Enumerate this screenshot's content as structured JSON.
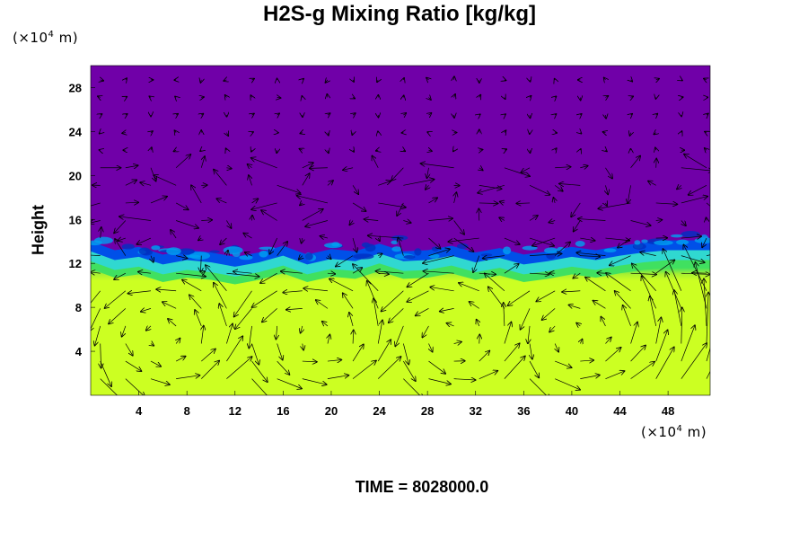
{
  "title": "H2S-g Mixing Ratio [kg/kg]",
  "unit_y": {
    "prefix": "(×10",
    "exp": "4",
    "suffix": " m)"
  },
  "unit_x": {
    "prefix": "(×10",
    "exp": "4",
    "suffix": " m)"
  },
  "time_label": "TIME = 8028000.0",
  "chart_data": {
    "type": "heatmap",
    "title": "H2S-g Mixing Ratio [kg/kg]",
    "ylabel": "Height",
    "xlabel": "",
    "x_unit": "(×10^4 m)",
    "y_unit": "(×10^4 m)",
    "xlim": [
      0,
      51.5
    ],
    "ylim": [
      0,
      30
    ],
    "xticks": [
      4,
      8,
      12,
      16,
      20,
      24,
      28,
      32,
      36,
      40,
      44,
      48
    ],
    "yticks": [
      4,
      8,
      12,
      16,
      20,
      24,
      28
    ],
    "xtick_labels": [
      "4",
      "8",
      "12",
      "16",
      "20",
      "24",
      "28",
      "32",
      "36",
      "40",
      "44",
      "48"
    ],
    "ytick_labels": [
      "4",
      "8",
      "12",
      "16",
      "20",
      "24",
      "28"
    ],
    "grid": false,
    "legend": "none",
    "overlay": "wind vector arrows",
    "colors": {
      "upper_layer": "#7000a8",
      "interface_blue": "#0050e8",
      "interface_cyan": "#30d8d0",
      "transition_green": "#40e060",
      "lower_layer": "#ccff22"
    },
    "layers": [
      {
        "region": "upper (y > ~14)",
        "value_level": "low",
        "color": "#7000a8"
      },
      {
        "region": "interface (y ~ 12-14)",
        "value_level": "transition",
        "color": "#0050e8"
      },
      {
        "region": "lower (y < ~11)",
        "value_level": "high",
        "color": "#ccff22"
      }
    ],
    "interface_profile": {
      "x": [
        0,
        2,
        4,
        6,
        8,
        10,
        12,
        14,
        16,
        18,
        20,
        22,
        24,
        26,
        28,
        30,
        32,
        34,
        36,
        38,
        40,
        42,
        44,
        46,
        48,
        51.5
      ],
      "y": [
        13.8,
        13.0,
        13.3,
        12.6,
        13.0,
        12.8,
        12.4,
        12.8,
        13.4,
        12.6,
        13.1,
        12.9,
        13.6,
        12.9,
        13.0,
        13.4,
        12.8,
        13.2,
        12.6,
        12.9,
        13.3,
        13.0,
        13.4,
        13.7,
        13.9,
        13.9
      ]
    },
    "time": "TIME = 8028000.0"
  }
}
